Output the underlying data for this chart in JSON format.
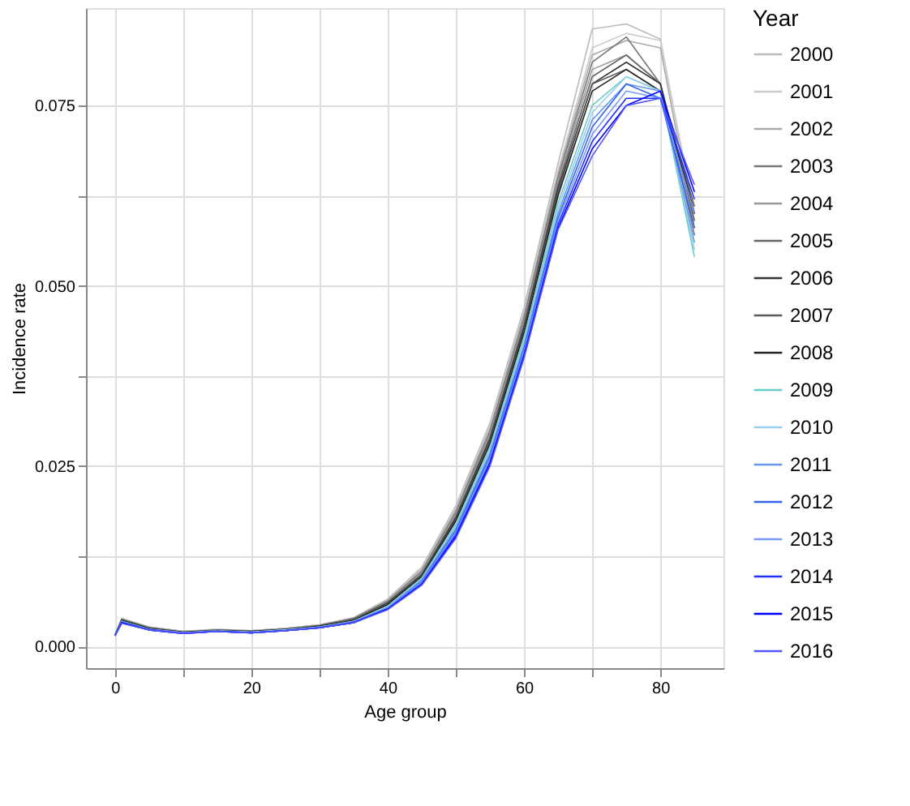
{
  "chart_data": {
    "type": "line",
    "xlabel": "Age group",
    "ylabel": "Incidence rate",
    "legend_title": "Year",
    "legend": "right",
    "grid": true,
    "marker": "none",
    "line_style": "solid",
    "x": [
      0,
      1,
      5,
      10,
      15,
      20,
      25,
      30,
      35,
      40,
      45,
      50,
      55,
      60,
      65,
      70,
      75,
      80,
      85
    ],
    "xlim": [
      -4.25,
      89.25
    ],
    "ylim": [
      -0.003,
      0.0885
    ],
    "xticks": [
      0,
      {
        "value": 10,
        "label": null
      },
      20,
      {
        "value": 30,
        "label": null
      },
      40,
      {
        "value": 50,
        "label": null
      },
      60,
      {
        "value": 70,
        "label": null
      },
      80
    ],
    "yticks": [
      {
        "value": 0,
        "label": "0.000"
      },
      {
        "value": 0.0125,
        "label": null
      },
      {
        "value": 0.025,
        "label": "0.025"
      },
      {
        "value": 0.0375,
        "label": null
      },
      {
        "value": 0.05,
        "label": "0.050"
      },
      {
        "value": 0.0625,
        "label": null
      },
      {
        "value": 0.075,
        "label": "0.075"
      }
    ],
    "series": [
      {
        "name": "2000",
        "color": "#bbbbbb",
        "values": [
          0.0015,
          0.0039,
          0.0027,
          0.0021,
          0.0024,
          0.0022,
          0.0025,
          0.003,
          0.004,
          0.0066,
          0.011,
          0.0195,
          0.031,
          0.047,
          0.067,
          0.0856,
          0.0863,
          0.0842,
          0.059
        ]
      },
      {
        "name": "2001",
        "color": "#cccccc",
        "values": [
          0.0015,
          0.0039,
          0.0027,
          0.0021,
          0.0024,
          0.0022,
          0.0025,
          0.003,
          0.004,
          0.0065,
          0.0108,
          0.0192,
          0.0306,
          0.0465,
          0.066,
          0.083,
          0.085,
          0.084,
          0.06
        ]
      },
      {
        "name": "2002",
        "color": "#aaaaaa",
        "values": [
          0.0015,
          0.0038,
          0.0027,
          0.0021,
          0.0023,
          0.0022,
          0.0025,
          0.003,
          0.0039,
          0.0064,
          0.0106,
          0.0189,
          0.0302,
          0.046,
          0.0655,
          0.082,
          0.084,
          0.083,
          0.058
        ]
      },
      {
        "name": "2003",
        "color": "#777777",
        "values": [
          0.0015,
          0.0038,
          0.0026,
          0.002,
          0.0023,
          0.0021,
          0.0024,
          0.0029,
          0.0039,
          0.0063,
          0.0104,
          0.0186,
          0.0298,
          0.0455,
          0.065,
          0.081,
          0.0845,
          0.078,
          0.057
        ]
      },
      {
        "name": "2004",
        "color": "#999999",
        "values": [
          0.0015,
          0.0038,
          0.0026,
          0.002,
          0.0023,
          0.0021,
          0.0024,
          0.0029,
          0.0038,
          0.0062,
          0.0102,
          0.0183,
          0.0294,
          0.045,
          0.0645,
          0.08,
          0.082,
          0.078,
          0.058
        ]
      },
      {
        "name": "2005",
        "color": "#666666",
        "values": [
          0.0015,
          0.0037,
          0.0026,
          0.002,
          0.0023,
          0.0021,
          0.0024,
          0.0029,
          0.0038,
          0.0061,
          0.01,
          0.018,
          0.029,
          0.0446,
          0.064,
          0.079,
          0.082,
          0.078,
          0.059
        ]
      },
      {
        "name": "2006",
        "color": "#333333",
        "values": [
          0.0015,
          0.0037,
          0.0025,
          0.002,
          0.0022,
          0.0021,
          0.0024,
          0.0028,
          0.0037,
          0.006,
          0.0099,
          0.0178,
          0.0287,
          0.0442,
          0.0635,
          0.078,
          0.081,
          0.078,
          0.06
        ]
      },
      {
        "name": "2007",
        "color": "#5a5a5a",
        "values": [
          0.0015,
          0.0036,
          0.0025,
          0.0019,
          0.0022,
          0.002,
          0.0023,
          0.0028,
          0.0037,
          0.0059,
          0.0098,
          0.0176,
          0.0284,
          0.0438,
          0.063,
          0.078,
          0.08,
          0.077,
          0.061
        ]
      },
      {
        "name": "2008",
        "color": "#222222",
        "values": [
          0.0015,
          0.0036,
          0.0025,
          0.0019,
          0.0022,
          0.002,
          0.0023,
          0.0028,
          0.0036,
          0.0058,
          0.0097,
          0.0174,
          0.0281,
          0.0435,
          0.0625,
          0.077,
          0.08,
          0.077,
          0.06
        ]
      },
      {
        "name": "2009",
        "color": "#66cccc",
        "values": [
          0.0015,
          0.0035,
          0.0024,
          0.0019,
          0.0022,
          0.002,
          0.0023,
          0.0027,
          0.0035,
          0.0056,
          0.0095,
          0.017,
          0.0276,
          0.0428,
          0.0615,
          0.075,
          0.079,
          0.077,
          0.054
        ]
      },
      {
        "name": "2010",
        "color": "#99ccee",
        "values": [
          0.0015,
          0.0035,
          0.0024,
          0.0019,
          0.0021,
          0.002,
          0.0023,
          0.0027,
          0.0035,
          0.0055,
          0.0093,
          0.0167,
          0.0272,
          0.0423,
          0.0608,
          0.074,
          0.079,
          0.077,
          0.055
        ]
      },
      {
        "name": "2011",
        "color": "#6699ee",
        "values": [
          0.0015,
          0.0034,
          0.0024,
          0.0019,
          0.0021,
          0.0019,
          0.0022,
          0.0027,
          0.0034,
          0.0054,
          0.0092,
          0.0164,
          0.0268,
          0.0418,
          0.0601,
          0.073,
          0.078,
          0.077,
          0.056
        ]
      },
      {
        "name": "2012",
        "color": "#3366ee",
        "values": [
          0.0015,
          0.0034,
          0.0023,
          0.0019,
          0.0021,
          0.0019,
          0.0022,
          0.0026,
          0.0034,
          0.0053,
          0.009,
          0.0161,
          0.0264,
          0.0413,
          0.0595,
          0.072,
          0.078,
          0.076,
          0.058
        ]
      },
      {
        "name": "2013",
        "color": "#7799ff",
        "values": [
          0.0015,
          0.0033,
          0.0023,
          0.0019,
          0.0021,
          0.0019,
          0.0022,
          0.0026,
          0.0033,
          0.0053,
          0.0089,
          0.0158,
          0.026,
          0.0409,
          0.059,
          0.071,
          0.077,
          0.076,
          0.06
        ]
      },
      {
        "name": "2014",
        "color": "#2233ff",
        "values": [
          0.0015,
          0.0033,
          0.0023,
          0.0018,
          0.0021,
          0.0019,
          0.0022,
          0.0026,
          0.0033,
          0.0052,
          0.0087,
          0.0155,
          0.0256,
          0.0405,
          0.0585,
          0.07,
          0.076,
          0.076,
          0.062
        ]
      },
      {
        "name": "2015",
        "color": "#0000ff",
        "values": [
          0.0015,
          0.0033,
          0.0023,
          0.0018,
          0.0021,
          0.0019,
          0.0022,
          0.0026,
          0.0033,
          0.0052,
          0.0086,
          0.0152,
          0.0253,
          0.0402,
          0.058,
          0.069,
          0.075,
          0.077,
          0.063
        ]
      },
      {
        "name": "2016",
        "color": "#5555ff",
        "values": [
          0.0015,
          0.0032,
          0.0023,
          0.0018,
          0.0021,
          0.0019,
          0.0022,
          0.0026,
          0.0033,
          0.0051,
          0.0085,
          0.015,
          0.025,
          0.04,
          0.0578,
          0.068,
          0.075,
          0.076,
          0.064
        ]
      }
    ]
  }
}
